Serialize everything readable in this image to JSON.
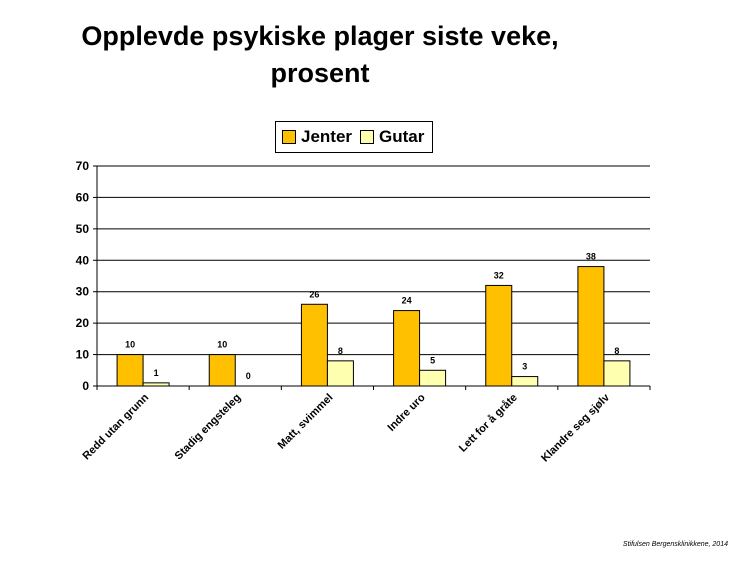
{
  "title_line1": "Opplevde psykiske plager siste veke,",
  "title_line2": "prosent",
  "footer": "Stifulsen Bergensklinikkene, 2014",
  "chart_data": {
    "type": "bar",
    "categories": [
      "Redd utan grunn",
      "Stadig engsteleg",
      "Matt, svimmel",
      "Indre uro",
      "Lett for å gråte",
      "Klandre seg sjølv"
    ],
    "series": [
      {
        "name": "Jenter",
        "values": [
          10,
          10,
          26,
          24,
          32,
          38
        ],
        "color": "#FFC000"
      },
      {
        "name": "Gutar",
        "values": [
          1,
          0,
          8,
          5,
          3,
          8
        ],
        "color": "#FFFFB0"
      }
    ],
    "ylim": [
      0,
      70
    ],
    "yticks": [
      0,
      10,
      20,
      30,
      40,
      50,
      60,
      70
    ],
    "grid": true,
    "legend_position": "top"
  }
}
